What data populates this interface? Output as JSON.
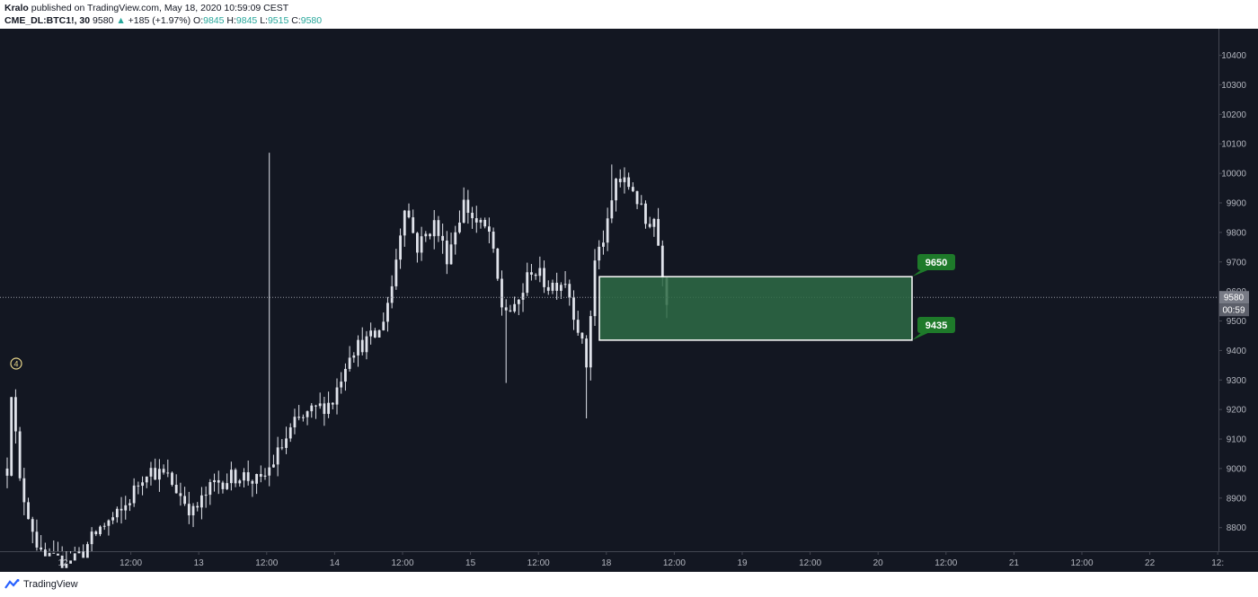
{
  "header": {
    "author": "Kralo",
    "published_text": "published on TradingView.com, May 18, 2020 10:59:09 CEST",
    "symbol": "CME_DL:BTC1!, 30",
    "last_price": "9580",
    "change_arrow": "▲",
    "change": "+185 (+1.97%)",
    "open_label": "O:",
    "open": "9845",
    "high_label": "H:",
    "high": "9845",
    "low_label": "L:",
    "low": "9515",
    "close_label": "C:",
    "close": "9580"
  },
  "footer": {
    "brand": "TradingView",
    "logo_icon": "tradingview-logo-icon"
  },
  "colors": {
    "background": "#131722",
    "candle": "#e0e3eb",
    "zone_fill": "#2e6b45",
    "zone_border": "#ffffff",
    "label_green": "#1e7a2a",
    "price_tag": "#787b86",
    "axis_text": "#b2b5be",
    "grid_line": "#434651"
  },
  "chart_data": {
    "type": "candlestick",
    "symbol": "CME_DL:BTC1!",
    "interval": "30",
    "ylim": [
      8720,
      10490
    ],
    "y_ticks": [
      8800,
      8900,
      9000,
      9100,
      9200,
      9300,
      9400,
      9500,
      9600,
      9700,
      9800,
      9900,
      10000,
      10100,
      10200,
      10300,
      10400
    ],
    "x_tick_labels": [
      "12",
      "12:00",
      "13",
      "12:00",
      "14",
      "12:00",
      "15",
      "12:00",
      "18",
      "12:00",
      "19",
      "12:00",
      "20",
      "12:00",
      "21",
      "12:00",
      "22",
      "12:"
    ],
    "series": [
      {
        "name": "BTC1!",
        "candle_count": 157,
        "anchors": [
          [
            0,
            9000
          ],
          [
            1,
            9270
          ],
          [
            3,
            8950
          ],
          [
            8,
            8700
          ],
          [
            12,
            8680
          ],
          [
            18,
            8720
          ],
          [
            22,
            8800
          ],
          [
            27,
            8850
          ],
          [
            33,
            9000
          ],
          [
            38,
            8970
          ],
          [
            44,
            8850
          ],
          [
            49,
            8950
          ],
          [
            55,
            8980
          ],
          [
            60,
            8950
          ],
          [
            64,
            9050
          ],
          [
            68,
            9150
          ],
          [
            73,
            9200
          ],
          [
            77,
            9230
          ],
          [
            81,
            9400
          ],
          [
            85,
            9430
          ],
          [
            88,
            9460
          ],
          [
            91,
            9620
          ],
          [
            94,
            9900
          ],
          [
            97,
            9750
          ],
          [
            101,
            9830
          ],
          [
            104,
            9720
          ],
          [
            108,
            9900
          ],
          [
            111,
            9830
          ],
          [
            114,
            9800
          ],
          [
            117,
            9550
          ],
          [
            120,
            9530
          ],
          [
            124,
            9680
          ],
          [
            128,
            9620
          ],
          [
            132,
            9640
          ],
          [
            135,
            9480
          ],
          [
            137,
            9350
          ],
          [
            139,
            9700
          ],
          [
            142,
            9820
          ],
          [
            144,
            9980
          ],
          [
            148,
            9950
          ],
          [
            151,
            9830
          ],
          [
            153,
            9850
          ],
          [
            156,
            9580
          ]
        ]
      }
    ],
    "last_price": 9580,
    "countdown": "00:59",
    "zone": {
      "top": 9650,
      "bottom": 9435,
      "top_label": "9650",
      "bottom_label": "9435"
    },
    "marker": "4"
  }
}
